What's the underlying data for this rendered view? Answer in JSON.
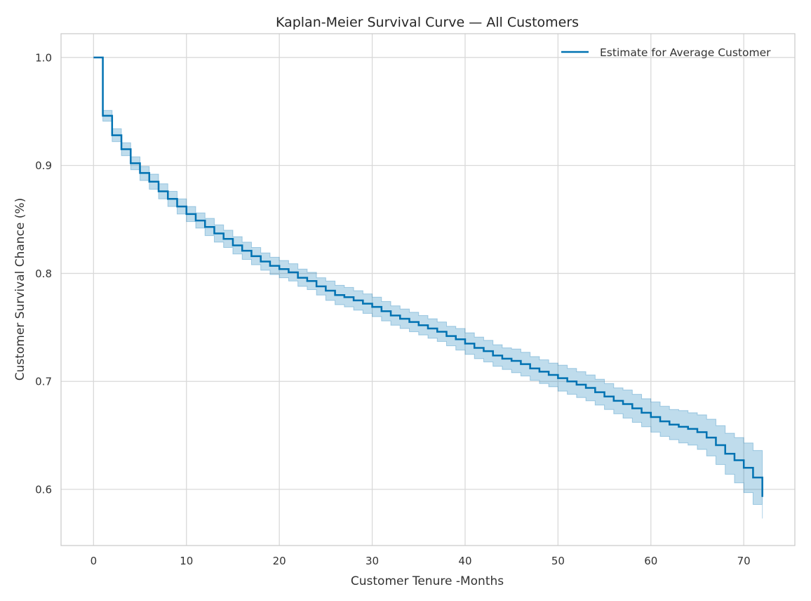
{
  "chart_data": {
    "type": "line",
    "title": "Kaplan-Meier Survival Curve — All Customers",
    "xlabel": "Customer Tenure -Months",
    "ylabel": "Customer Survival Chance (%)",
    "xlim": [
      -3.5,
      75.5
    ],
    "ylim": [
      0.548,
      1.022
    ],
    "xticks": [
      0,
      10,
      20,
      30,
      40,
      50,
      60,
      70
    ],
    "yticks": [
      0.6,
      0.7,
      0.8,
      0.9,
      1.0
    ],
    "xtick_labels": [
      "0",
      "10",
      "20",
      "30",
      "40",
      "50",
      "60",
      "70"
    ],
    "ytick_labels": [
      "0.6",
      "0.7",
      "0.8",
      "0.9",
      "1.0"
    ],
    "grid": true,
    "legend_position": "top-right",
    "colors": {
      "line": "#0072B2",
      "band": "#0072B2",
      "grid": "#d9d9d9",
      "frame": "#cccccc"
    },
    "series": [
      {
        "name": "Estimate for Average Customer",
        "x": [
          0,
          1,
          2,
          3,
          4,
          5,
          6,
          7,
          8,
          9,
          10,
          11,
          12,
          13,
          14,
          15,
          16,
          17,
          18,
          19,
          20,
          21,
          22,
          23,
          24,
          25,
          26,
          27,
          28,
          29,
          30,
          31,
          32,
          33,
          34,
          35,
          36,
          37,
          38,
          39,
          40,
          41,
          42,
          43,
          44,
          45,
          46,
          47,
          48,
          49,
          50,
          51,
          52,
          53,
          54,
          55,
          56,
          57,
          58,
          59,
          60,
          61,
          62,
          63,
          64,
          65,
          66,
          67,
          68,
          69,
          70,
          71,
          72
        ],
        "y": [
          1.0,
          0.946,
          0.928,
          0.915,
          0.902,
          0.893,
          0.885,
          0.876,
          0.869,
          0.862,
          0.855,
          0.849,
          0.843,
          0.837,
          0.832,
          0.826,
          0.821,
          0.816,
          0.811,
          0.807,
          0.804,
          0.801,
          0.796,
          0.793,
          0.788,
          0.784,
          0.78,
          0.778,
          0.775,
          0.772,
          0.769,
          0.765,
          0.761,
          0.758,
          0.755,
          0.752,
          0.749,
          0.746,
          0.742,
          0.739,
          0.735,
          0.731,
          0.728,
          0.724,
          0.721,
          0.719,
          0.716,
          0.712,
          0.709,
          0.706,
          0.703,
          0.7,
          0.697,
          0.694,
          0.69,
          0.686,
          0.682,
          0.679,
          0.675,
          0.671,
          0.667,
          0.663,
          0.66,
          0.658,
          0.656,
          0.653,
          0.648,
          0.641,
          0.633,
          0.627,
          0.62,
          0.611,
          0.603
        ],
        "ci_lower": [
          1.0,
          0.941,
          0.922,
          0.909,
          0.896,
          0.886,
          0.878,
          0.869,
          0.862,
          0.855,
          0.848,
          0.842,
          0.835,
          0.829,
          0.824,
          0.818,
          0.813,
          0.808,
          0.803,
          0.799,
          0.796,
          0.793,
          0.788,
          0.785,
          0.78,
          0.775,
          0.771,
          0.769,
          0.766,
          0.763,
          0.76,
          0.756,
          0.752,
          0.749,
          0.746,
          0.743,
          0.74,
          0.737,
          0.733,
          0.729,
          0.725,
          0.721,
          0.718,
          0.714,
          0.711,
          0.708,
          0.705,
          0.701,
          0.698,
          0.695,
          0.691,
          0.688,
          0.685,
          0.682,
          0.678,
          0.674,
          0.67,
          0.666,
          0.662,
          0.658,
          0.653,
          0.649,
          0.646,
          0.643,
          0.641,
          0.637,
          0.631,
          0.623,
          0.614,
          0.606,
          0.597,
          0.586,
          0.573
        ],
        "ci_upper": [
          1.0,
          0.951,
          0.934,
          0.921,
          0.908,
          0.899,
          0.892,
          0.883,
          0.876,
          0.869,
          0.862,
          0.856,
          0.851,
          0.845,
          0.84,
          0.834,
          0.829,
          0.824,
          0.819,
          0.815,
          0.812,
          0.809,
          0.804,
          0.801,
          0.796,
          0.793,
          0.789,
          0.787,
          0.784,
          0.781,
          0.778,
          0.774,
          0.77,
          0.767,
          0.764,
          0.761,
          0.758,
          0.755,
          0.751,
          0.749,
          0.745,
          0.741,
          0.738,
          0.734,
          0.731,
          0.73,
          0.727,
          0.723,
          0.72,
          0.717,
          0.715,
          0.712,
          0.709,
          0.706,
          0.702,
          0.698,
          0.694,
          0.692,
          0.688,
          0.684,
          0.681,
          0.677,
          0.674,
          0.673,
          0.671,
          0.669,
          0.665,
          0.659,
          0.652,
          0.648,
          0.643,
          0.636,
          0.633
        ]
      }
    ]
  }
}
